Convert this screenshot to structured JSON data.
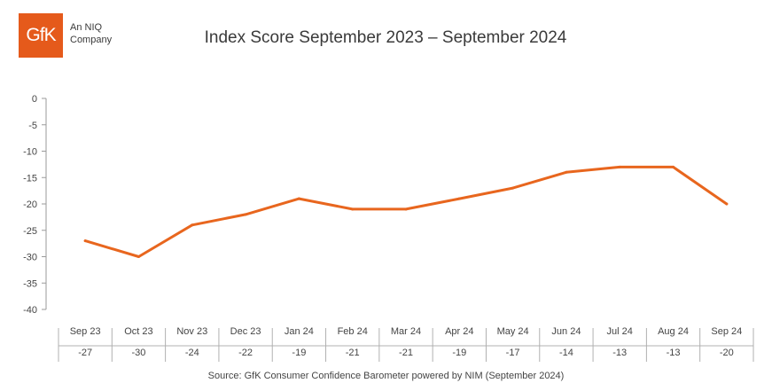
{
  "logo": {
    "mark": "GfK",
    "line1": "An NIQ",
    "line2": "Company",
    "color": "#e55a1b"
  },
  "source_note": "Source: GfK Consumer Confidence Barometer powered by NIM (September 2024)",
  "chart_data": {
    "type": "line",
    "title": "Index Score September 2023 – September 2024",
    "xlabel": "",
    "ylabel": "",
    "categories": [
      "Sep 23",
      "Oct 23",
      "Nov 23",
      "Dec 23",
      "Jan 24",
      "Feb 24",
      "Mar 24",
      "Apr 24",
      "May 24",
      "Jun 24",
      "Jul 24",
      "Aug 24",
      "Sep 24"
    ],
    "series": [
      {
        "values": [
          -27,
          -30,
          -24,
          -22,
          -19,
          -21,
          -21,
          -19,
          -17,
          -14,
          -13,
          -13,
          -20
        ],
        "color": "#e8661e"
      }
    ],
    "table_row": [
      "-27",
      "-30",
      "-24",
      "-22",
      "-19",
      "-21",
      "-21",
      "-19",
      "-17",
      "-14",
      "-13",
      "-13",
      "-20"
    ],
    "ylim": [
      -40,
      0
    ],
    "yticks": [
      0,
      -5,
      -10,
      -15,
      -20,
      -25,
      -30,
      -35,
      -40
    ],
    "grid": false,
    "legend": "none"
  }
}
